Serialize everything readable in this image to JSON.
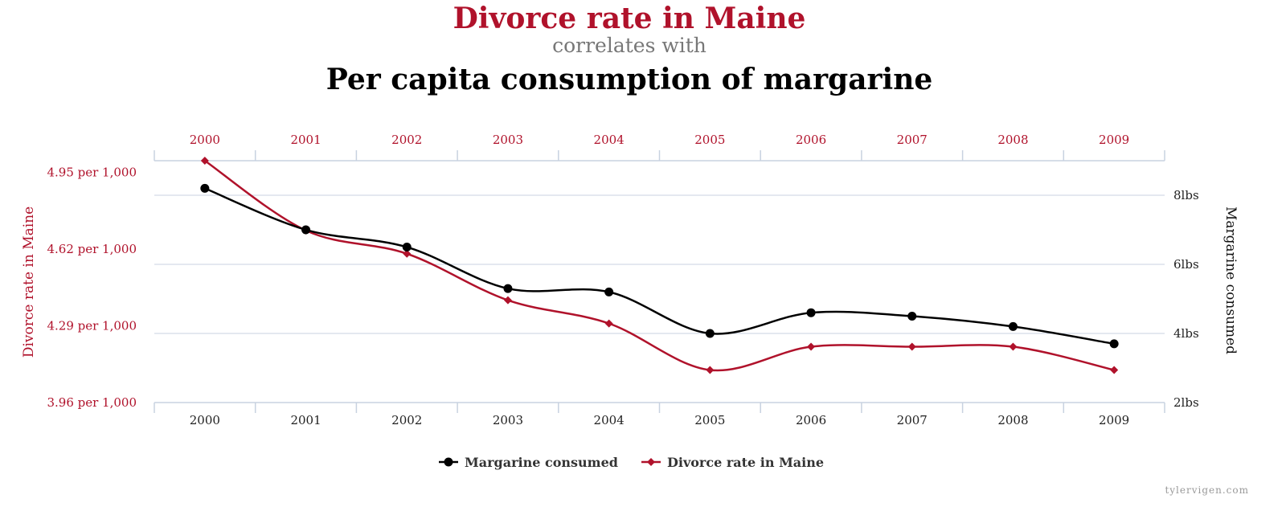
{
  "title": "Divorce rate in Maine",
  "subtitle": "correlates with",
  "title2": "Per capita consumption of margarine",
  "watermark": "tylervigen.com",
  "colors": {
    "divorce": "#b0122b",
    "margarine": "#000000",
    "grid": "#c8d2e0"
  },
  "chart_data": {
    "type": "line",
    "categories": [
      "2000",
      "2001",
      "2002",
      "2003",
      "2004",
      "2005",
      "2006",
      "2007",
      "2008",
      "2009"
    ],
    "left_axis": {
      "label": "Divorce rate in Maine",
      "ticks": [
        3.96,
        4.29,
        4.62,
        4.95
      ],
      "tick_labels": [
        "3.96 per 1,000",
        "4.29 per 1,000",
        "4.62 per 1,000",
        "4.95 per 1,000"
      ],
      "range": [
        3.96,
        5.0
      ]
    },
    "right_axis": {
      "label": "Margarine consumed",
      "ticks": [
        2,
        4,
        6,
        8
      ],
      "tick_labels": [
        "2lbs",
        "4lbs",
        "6lbs",
        "8lbs"
      ],
      "range": [
        2,
        9
      ]
    },
    "series": [
      {
        "name": "Margarine consumed",
        "axis": "right",
        "marker": "circle",
        "values": [
          8.2,
          7.0,
          6.5,
          5.3,
          5.2,
          4.0,
          4.6,
          4.5,
          4.2,
          3.7
        ]
      },
      {
        "name": "Divorce rate in Maine",
        "axis": "left",
        "marker": "diamond",
        "values": [
          5.0,
          4.7,
          4.6,
          4.4,
          4.3,
          4.1,
          4.2,
          4.2,
          4.2,
          4.1
        ]
      }
    ],
    "legend": "bottom",
    "grid": true
  }
}
